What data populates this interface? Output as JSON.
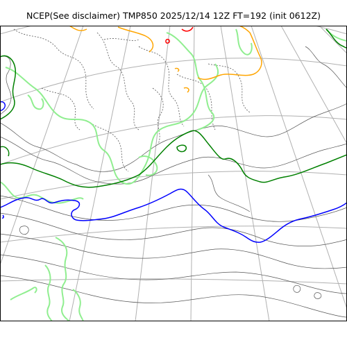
{
  "map": {
    "title": "NCEP(See disclaimer) TMP850 2025/12/14 12Z FT=192 (init 0612Z)"
  },
  "contour_colors": {
    "graticule": "#b0b0b0",
    "isotherm_minor": "#555555",
    "isotherm_dashed": "#555555",
    "isotherm_green_light": "#90ee90",
    "isotherm_green_dark": "#008000",
    "isotherm_blue": "#0000ff",
    "isotherm_orange": "#ffa500",
    "isotherm_red": "#ff0000"
  }
}
